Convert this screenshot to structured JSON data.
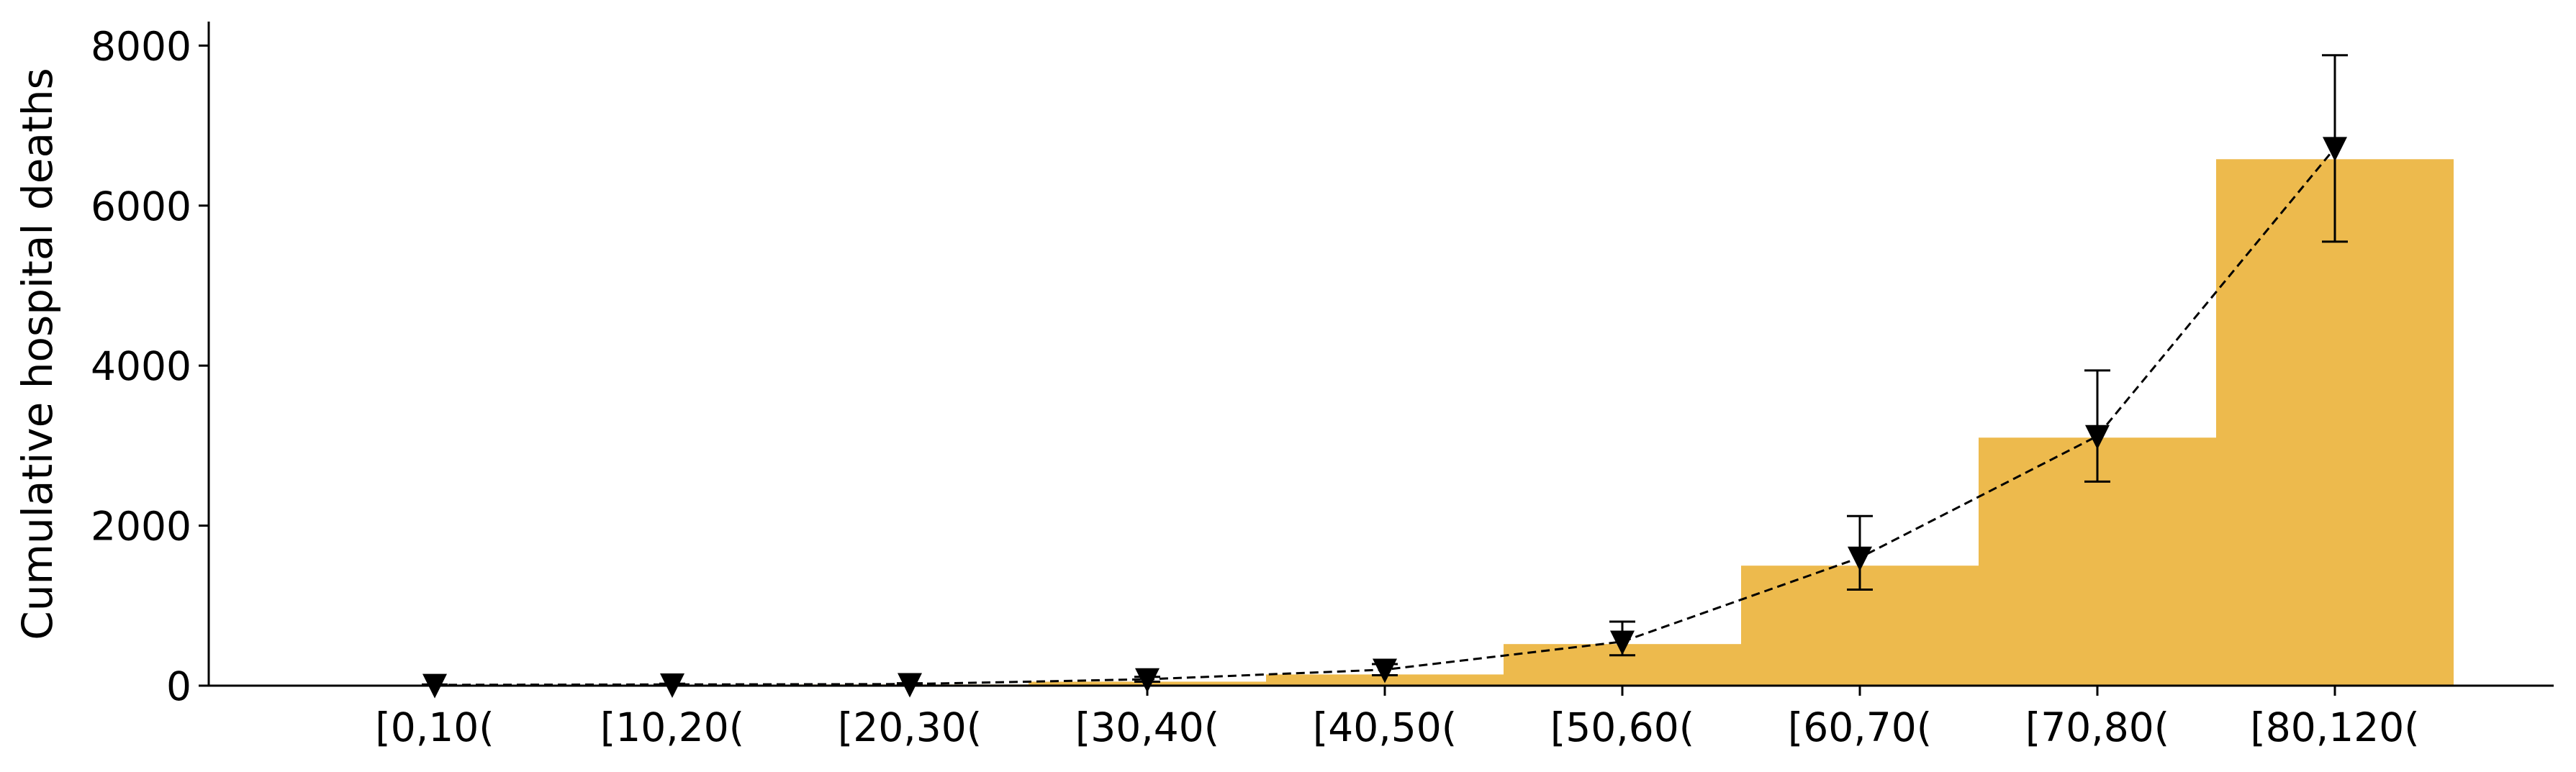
{
  "chart_data": {
    "type": "bar",
    "title": "",
    "xlabel": "",
    "ylabel": "Cumulative hospital deaths",
    "categories": [
      "[0,10(",
      "[10,20(",
      "[20,30(",
      "[30,40(",
      "[40,50(",
      "[50,60(",
      "[60,70(",
      "[70,80(",
      "[80,120("
    ],
    "values": [
      2,
      5,
      15,
      50,
      140,
      520,
      1500,
      3100,
      6580
    ],
    "overlay": {
      "type": "line",
      "marker": "triangle-down",
      "line_style": "dashed",
      "values": [
        10,
        15,
        20,
        80,
        200,
        550,
        1600,
        3120,
        6720
      ],
      "error_low": [
        5,
        8,
        10,
        50,
        130,
        380,
        1200,
        2550,
        5550
      ],
      "error_high": [
        15,
        25,
        30,
        110,
        270,
        800,
        2120,
        3940,
        7880
      ]
    },
    "ylim": [
      0,
      8300
    ],
    "yticks": [
      0,
      2000,
      4000,
      6000,
      8000
    ],
    "grid": false,
    "bar_color": "#EDBA4D",
    "marker_color": "#000000"
  }
}
